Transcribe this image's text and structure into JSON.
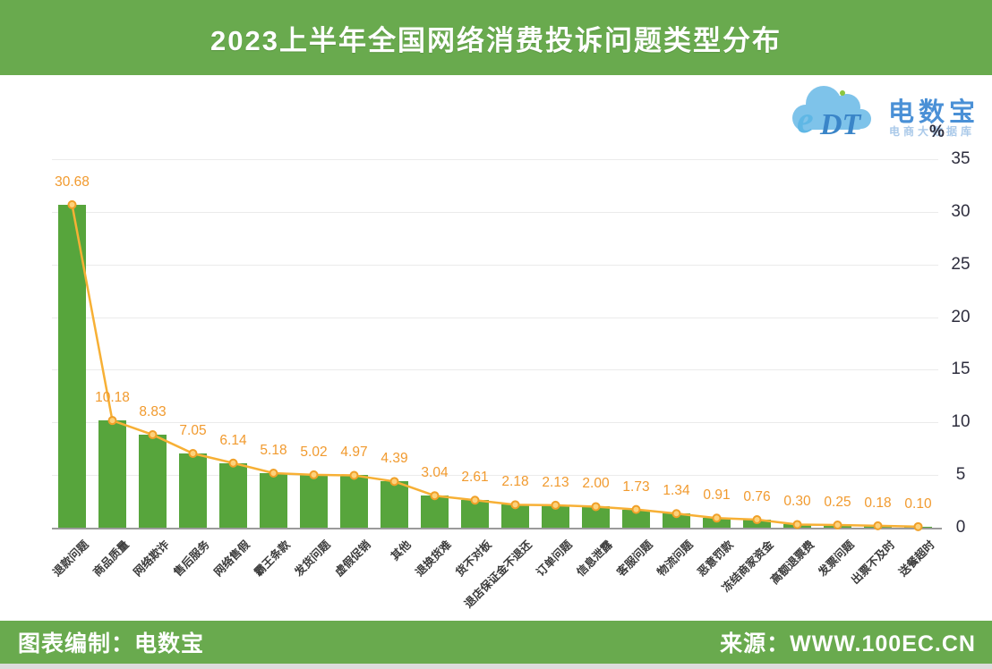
{
  "header": {
    "title": "2023上半年全国网络消费投诉问题类型分布"
  },
  "logo": {
    "mark_e": "e",
    "mark_dt": "DT",
    "brand": "电数宝",
    "subtitle": "电商大数据库",
    "cloud_color": "#7ec3ea",
    "brand_color": "#4a90d6"
  },
  "footer": {
    "left": "图表编制：电数宝",
    "right": "来源：WWW.100EC.CN"
  },
  "chart_data": {
    "type": "bar",
    "line_overlay": true,
    "title": "2023上半年全国网络消费投诉问题类型分布",
    "unit": "%",
    "categories": [
      "退款问题",
      "商品质量",
      "网络欺诈",
      "售后服务",
      "网络售假",
      "霸王条款",
      "发货问题",
      "虚假促销",
      "其他",
      "退换货难",
      "货不对板",
      "退店保证金不退还",
      "订单问题",
      "信息泄露",
      "客服问题",
      "物流问题",
      "恶意罚款",
      "冻结商家资金",
      "高额退票费",
      "发票问题",
      "出票不及时",
      "送餐超时"
    ],
    "values": [
      30.68,
      10.18,
      8.83,
      7.05,
      6.14,
      5.18,
      5.02,
      4.97,
      4.39,
      3.04,
      2.61,
      2.18,
      2.13,
      2.0,
      1.73,
      1.34,
      0.91,
      0.76,
      0.3,
      0.25,
      0.18,
      0.1
    ],
    "value_labels": [
      "30.68",
      "10.18",
      "8.83",
      "7.05",
      "6.14",
      "5.18",
      "5.02",
      "4.97",
      "4.39",
      "3.04",
      "2.61",
      "2.18",
      "2.13",
      "2.00",
      "1.73",
      "1.34",
      "0.91",
      "0.76",
      "0.30",
      "0.25",
      "0.18",
      "0.10"
    ],
    "ylim": [
      0,
      35
    ],
    "yticks": [
      0,
      5,
      10,
      15,
      20,
      25,
      30,
      35
    ],
    "grid": true,
    "legend": "none",
    "bar_color": "#57a53c",
    "line_color": "#f7b035",
    "marker_stroke": "#f0a028",
    "marker_fill": "#fdd27c",
    "value_label_color": "#f19a2e"
  }
}
